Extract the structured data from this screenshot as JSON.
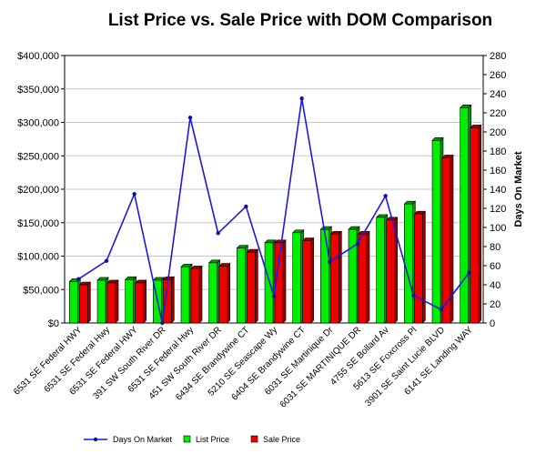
{
  "chart_data": {
    "type": "bar",
    "title": "List Price vs. Sale Price with DOM Comparison",
    "xlabel": "",
    "ylabel": "",
    "y2label": "Days On Market",
    "ylim": [
      0,
      400000
    ],
    "y2lim": [
      0,
      280
    ],
    "y_ticks": [
      "$0",
      "$50,000",
      "$100,000",
      "$150,000",
      "$200,000",
      "$250,000",
      "$300,000",
      "$350,000",
      "$400,000"
    ],
    "y2_ticks": [
      "0",
      "20",
      "40",
      "60",
      "80",
      "100",
      "120",
      "140",
      "160",
      "180",
      "200",
      "220",
      "240",
      "260",
      "280"
    ],
    "categories": [
      "6531 SE Federal HWY",
      "6531 SE Federal Hwy",
      "6531 SE Federal HWY",
      "391 SW South River DR",
      "6531 SE Federal Hwy",
      "451 SW South River DR",
      "6434 SE Brandywine CT",
      "5210 SE Seascape Wy",
      "6404 SE Brandywine CT",
      "6031 SE Martinique Dr",
      "6031 SE MARTINIQUE DR",
      "4755 SE Bollard Av",
      "5613 SE Foxcross Pl",
      "3901 SE Saint Lucie BLVD",
      "6141 SE Landing WAY"
    ],
    "series": [
      {
        "name": "List Price",
        "axis": "left",
        "kind": "bar",
        "color": "#00ee00",
        "values": [
          62000,
          64000,
          65000,
          64000,
          84000,
          90000,
          112000,
          120000,
          135000,
          140000,
          140000,
          158000,
          178000,
          273000,
          322000
        ]
      },
      {
        "name": "Sale Price",
        "axis": "left",
        "kind": "bar",
        "color": "#ee0000",
        "values": [
          57000,
          60000,
          60000,
          65000,
          81000,
          85000,
          106000,
          120000,
          123000,
          133000,
          133000,
          154000,
          163000,
          247000,
          292000
        ]
      },
      {
        "name": "Days On Market",
        "axis": "right",
        "kind": "line",
        "color": "#1a1adf",
        "values": [
          46,
          65,
          135,
          0,
          215,
          94,
          122,
          28,
          235,
          64,
          83,
          133,
          29,
          14,
          53
        ]
      }
    ],
    "legend": {
      "placement": "bottom",
      "items": [
        "Days On Market",
        "List Price",
        "Sale Price"
      ]
    },
    "grid": true
  }
}
